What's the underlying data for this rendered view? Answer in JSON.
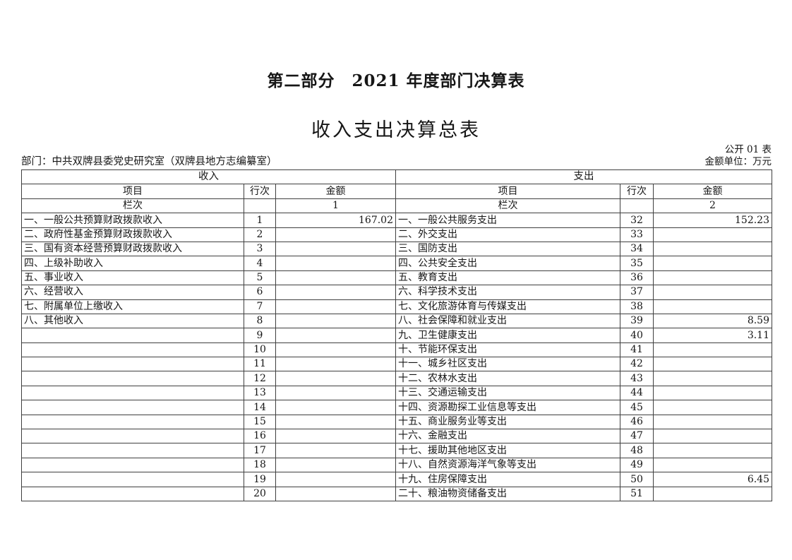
{
  "page": {
    "part_title": "第二部分　2021 年度部门决算表",
    "table_title": "收入支出决算总表",
    "table_code": "公开 01 表",
    "department_line": "部门：中共双牌县委党史研究室（双牌县地方志编纂室）",
    "unit_note": "金额单位：万元"
  },
  "table": {
    "income": {
      "section_title": "收入",
      "headers": {
        "item": "项目",
        "line": "行次",
        "amount": "金额"
      },
      "column_row_label": "栏次",
      "column_index": "1",
      "rows": [
        {
          "item": "一、一般公共预算财政拨款收入",
          "line": "1",
          "amount": "167.02"
        },
        {
          "item": "二、政府性基金预算财政拨款收入",
          "line": "2",
          "amount": ""
        },
        {
          "item": "三、国有资本经营预算财政拨款收入",
          "line": "3",
          "amount": ""
        },
        {
          "item": "四、上级补助收入",
          "line": "4",
          "amount": ""
        },
        {
          "item": "五、事业收入",
          "line": "5",
          "amount": ""
        },
        {
          "item": "六、经营收入",
          "line": "6",
          "amount": ""
        },
        {
          "item": "七、附属单位上缴收入",
          "line": "7",
          "amount": ""
        },
        {
          "item": "八、其他收入",
          "line": "8",
          "amount": ""
        },
        {
          "item": "",
          "line": "9",
          "amount": ""
        },
        {
          "item": "",
          "line": "10",
          "amount": ""
        },
        {
          "item": "",
          "line": "11",
          "amount": ""
        },
        {
          "item": "",
          "line": "12",
          "amount": ""
        },
        {
          "item": "",
          "line": "13",
          "amount": ""
        },
        {
          "item": "",
          "line": "14",
          "amount": ""
        },
        {
          "item": "",
          "line": "15",
          "amount": ""
        },
        {
          "item": "",
          "line": "16",
          "amount": ""
        },
        {
          "item": "",
          "line": "17",
          "amount": ""
        },
        {
          "item": "",
          "line": "18",
          "amount": ""
        },
        {
          "item": "",
          "line": "19",
          "amount": ""
        },
        {
          "item": "",
          "line": "20",
          "amount": ""
        }
      ]
    },
    "expenditure": {
      "section_title": "支出",
      "headers": {
        "item": "项目",
        "line": "行次",
        "amount": "金额"
      },
      "column_row_label": "栏次",
      "column_index": "2",
      "rows": [
        {
          "item": "一、一般公共服务支出",
          "line": "32",
          "amount": "152.23"
        },
        {
          "item": "二、外交支出",
          "line": "33",
          "amount": ""
        },
        {
          "item": "三、国防支出",
          "line": "34",
          "amount": ""
        },
        {
          "item": "四、公共安全支出",
          "line": "35",
          "amount": ""
        },
        {
          "item": "五、教育支出",
          "line": "36",
          "amount": ""
        },
        {
          "item": "六、科学技术支出",
          "line": "37",
          "amount": ""
        },
        {
          "item": "七、文化旅游体育与传媒支出",
          "line": "38",
          "amount": ""
        },
        {
          "item": "八、社会保障和就业支出",
          "line": "39",
          "amount": "8.59"
        },
        {
          "item": "九、卫生健康支出",
          "line": "40",
          "amount": "3.11"
        },
        {
          "item": "十、节能环保支出",
          "line": "41",
          "amount": ""
        },
        {
          "item": "十一、城乡社区支出",
          "line": "42",
          "amount": ""
        },
        {
          "item": "十二、农林水支出",
          "line": "43",
          "amount": ""
        },
        {
          "item": "十三、交通运输支出",
          "line": "44",
          "amount": ""
        },
        {
          "item": "十四、资源勘探工业信息等支出",
          "line": "45",
          "amount": ""
        },
        {
          "item": "十五、商业服务业等支出",
          "line": "46",
          "amount": ""
        },
        {
          "item": "十六、金融支出",
          "line": "47",
          "amount": ""
        },
        {
          "item": "十七、援助其他地区支出",
          "line": "48",
          "amount": ""
        },
        {
          "item": "十八、自然资源海洋气象等支出",
          "line": "49",
          "amount": ""
        },
        {
          "item": "十九、住房保障支出",
          "line": "50",
          "amount": "6.45"
        },
        {
          "item": "二十、粮油物资储备支出",
          "line": "51",
          "amount": ""
        }
      ]
    }
  }
}
